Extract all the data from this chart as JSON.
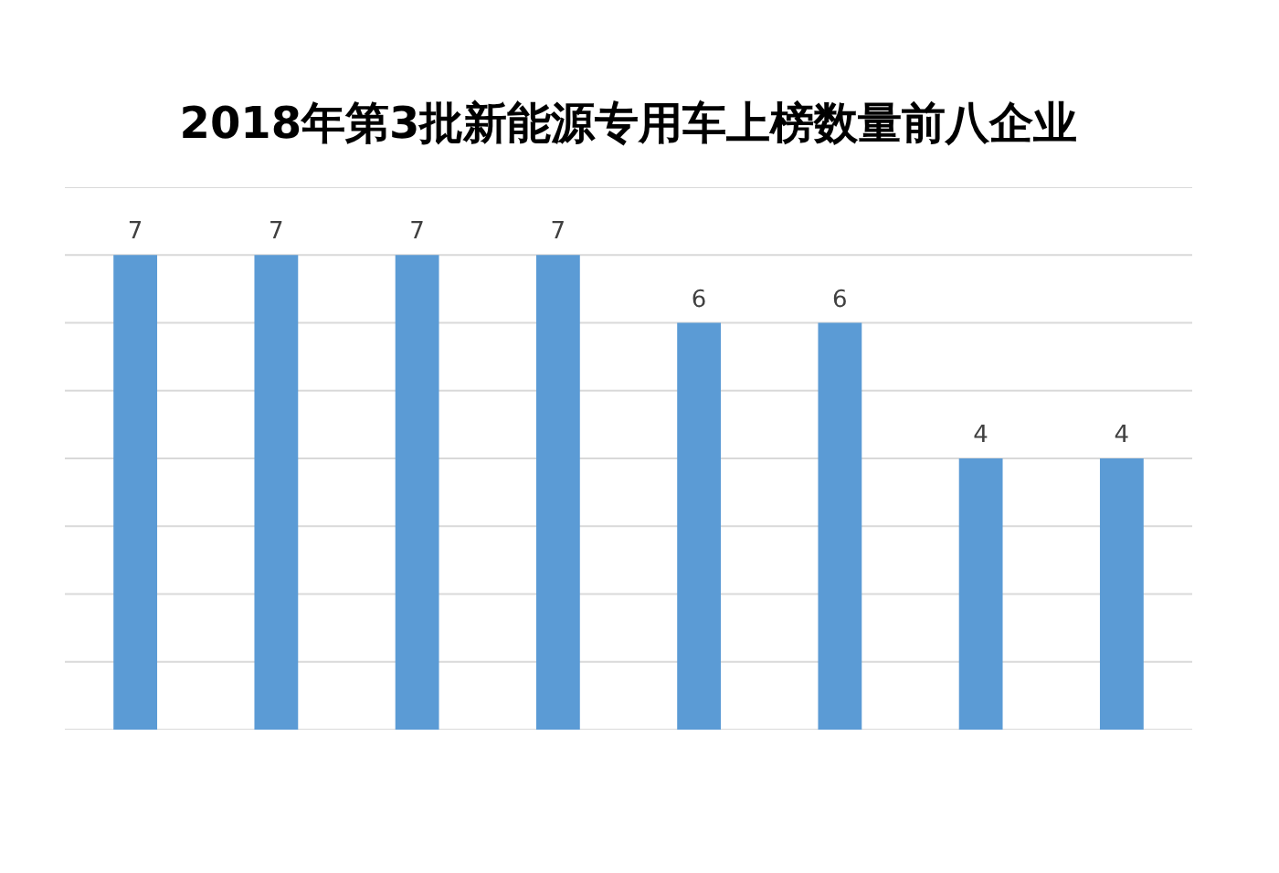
{
  "chart_data": {
    "type": "bar",
    "title": "2018年第3批新能源专用车上榜数量前八企业",
    "categories": [
      null,
      null,
      null,
      null,
      null,
      null,
      null,
      null
    ],
    "values": [
      7,
      7,
      7,
      7,
      6,
      6,
      4,
      4
    ],
    "color": "#5b9bd5",
    "ylim": [
      0,
      8
    ],
    "yticks": [
      0,
      1,
      2,
      3,
      4,
      5,
      6,
      7,
      8
    ],
    "grid": "y",
    "data_labels": true,
    "tick_labels": false
  }
}
